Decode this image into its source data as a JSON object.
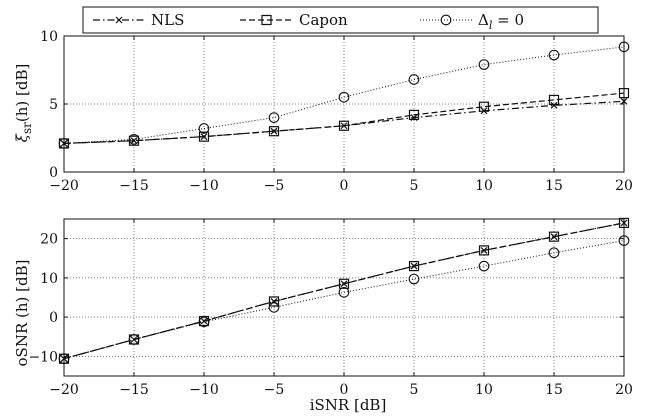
{
  "legend": {
    "entries": [
      {
        "label": "NLS",
        "series": "NLS"
      },
      {
        "label": "Capon",
        "series": "Capon"
      },
      {
        "label": "Δ_l = 0",
        "series": "Delta0",
        "main": "Δ",
        "sub": "l",
        "rest": " = 0"
      }
    ],
    "placement": "top (outside, above upper plot)"
  },
  "chart_data": [
    {
      "type": "line",
      "xlabel": "",
      "ylabel": "ξsr(h) [dB]",
      "ylabel_parts": {
        "main": "ξ",
        "sub": "sr",
        "rest": "(h) [dB]"
      },
      "xlim": [
        -20,
        20
      ],
      "ylim": [
        0,
        10
      ],
      "xticks": [
        "−20",
        "−15",
        "−10",
        "−5",
        "0",
        "5",
        "10",
        "15",
        "20"
      ],
      "yticks": [
        "0",
        "5",
        "10"
      ],
      "grid": true,
      "x": [
        -20,
        -15,
        -10,
        -5,
        0,
        5,
        10,
        15,
        20
      ],
      "series": [
        {
          "name": "NLS",
          "style": "dash-dot",
          "marker": "x",
          "values": [
            2.1,
            2.3,
            2.6,
            3.0,
            3.4,
            4.0,
            4.5,
            4.9,
            5.2
          ]
        },
        {
          "name": "Capon",
          "style": "dashed",
          "marker": "square",
          "values": [
            2.1,
            2.3,
            2.6,
            3.0,
            3.4,
            4.2,
            4.8,
            5.3,
            5.8
          ]
        },
        {
          "name": "Δ_l = 0",
          "style": "dotted",
          "marker": "circle",
          "values": [
            2.1,
            2.4,
            3.2,
            4.0,
            5.5,
            6.8,
            7.9,
            8.6,
            9.2
          ]
        }
      ]
    },
    {
      "type": "line",
      "xlabel": "iSNR [dB]",
      "ylabel": "oSNR (h) [dB]",
      "xlim": [
        -20,
        20
      ],
      "ylim": [
        -15,
        25
      ],
      "xticks": [
        "−20",
        "−15",
        "−10",
        "−5",
        "0",
        "5",
        "10",
        "15",
        "20"
      ],
      "yticks": [
        "−10",
        "0",
        "10",
        "20"
      ],
      "ytick_values": [
        -10,
        0,
        10,
        20
      ],
      "grid": true,
      "x": [
        -20,
        -15,
        -10,
        -5,
        0,
        5,
        10,
        15,
        20
      ],
      "series": [
        {
          "name": "NLS",
          "style": "dash-dot",
          "marker": "x",
          "values": [
            -10.6,
            -5.7,
            -1.0,
            4.0,
            8.5,
            13.0,
            17.0,
            20.5,
            24.0
          ]
        },
        {
          "name": "Capon",
          "style": "dashed",
          "marker": "square",
          "values": [
            -10.6,
            -5.7,
            -1.0,
            4.0,
            8.5,
            13.0,
            17.0,
            20.5,
            24.0
          ]
        },
        {
          "name": "Δ_l = 0",
          "style": "dotted",
          "marker": "circle",
          "values": [
            -10.6,
            -5.7,
            -1.2,
            2.5,
            6.3,
            9.7,
            13.0,
            16.4,
            19.5
          ]
        }
      ]
    }
  ]
}
